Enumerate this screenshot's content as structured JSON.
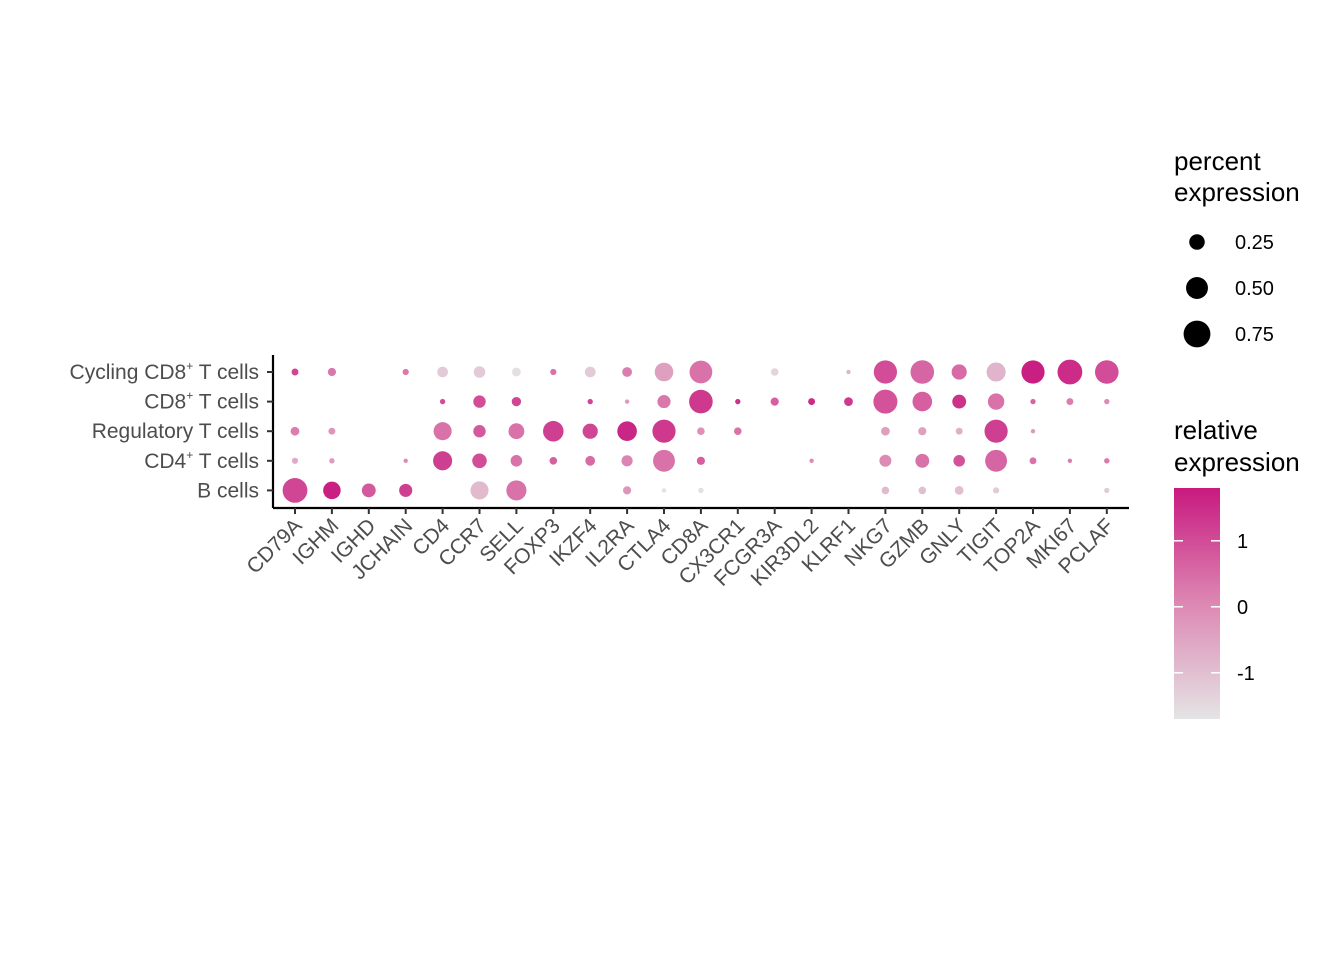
{
  "chart_data": {
    "type": "dot",
    "genes": [
      "CD79A",
      "IGHM",
      "IGHD",
      "JCHAIN",
      "CD4",
      "CCR7",
      "SELL",
      "FOXP3",
      "IKZF4",
      "IL2RA",
      "CTLA4",
      "CD8A",
      "CX3CR1",
      "FCGR3A",
      "KIR3DL2",
      "KLRF1",
      "NKG7",
      "GZMB",
      "GNLY",
      "TIGIT",
      "TOP2A",
      "MKI67",
      "PCLAF"
    ],
    "cell_types": [
      {
        "label": "Cycling CD8",
        "sup": "+",
        "suffix": " T cells"
      },
      {
        "label": "CD8",
        "sup": "+",
        "suffix": " T cells"
      },
      {
        "label": "Regulatory T cells",
        "sup": "",
        "suffix": ""
      },
      {
        "label": "CD4",
        "sup": "+",
        "suffix": " T cells"
      },
      {
        "label": "B cells",
        "sup": "",
        "suffix": ""
      }
    ],
    "percent_expression": [
      [
        0.05,
        0.07,
        null,
        0.04,
        0.12,
        0.14,
        0.08,
        0.04,
        0.12,
        0.1,
        0.36,
        0.54,
        null,
        0.06,
        null,
        0.02,
        0.56,
        0.58,
        0.24,
        0.38,
        0.56,
        0.64,
        0.58
      ],
      [
        null,
        null,
        null,
        null,
        0.03,
        0.16,
        0.09,
        null,
        0.03,
        0.02,
        0.18,
        0.58,
        0.03,
        0.07,
        0.05,
        0.08,
        0.6,
        0.4,
        0.2,
        0.28,
        0.03,
        0.05,
        0.03
      ],
      [
        0.08,
        0.05,
        null,
        null,
        0.34,
        0.16,
        0.26,
        0.44,
        0.24,
        0.4,
        0.56,
        0.06,
        0.06,
        null,
        null,
        null,
        0.08,
        0.07,
        0.05,
        0.56,
        0.02,
        null,
        null
      ],
      [
        0.04,
        0.03,
        null,
        0.02,
        0.38,
        0.22,
        0.14,
        0.06,
        0.1,
        0.13,
        0.5,
        0.07,
        null,
        null,
        0.02,
        null,
        0.15,
        0.2,
        0.14,
        0.5,
        0.05,
        0.02,
        0.03
      ],
      [
        0.64,
        0.32,
        0.2,
        0.18,
        null,
        0.34,
        0.42,
        null,
        null,
        0.07,
        0.02,
        0.03,
        null,
        null,
        null,
        null,
        0.06,
        0.06,
        0.08,
        0.04,
        null,
        null,
        0.03
      ]
    ],
    "relative_expression": [
      [
        1.1,
        0.3,
        null,
        0.3,
        -1.2,
        -1.2,
        -1.6,
        0.4,
        -1.2,
        0.2,
        -0.4,
        0.4,
        null,
        -1.4,
        null,
        -0.8,
        1.0,
        0.6,
        0.5,
        -0.8,
        1.7,
        1.5,
        1.0
      ],
      [
        null,
        null,
        null,
        null,
        1.0,
        1.0,
        1.1,
        null,
        1.1,
        -0.3,
        0.3,
        1.3,
        1.4,
        0.7,
        1.5,
        1.3,
        0.9,
        0.7,
        1.4,
        0.4,
        0.6,
        0.2,
        0.0
      ],
      [
        0.2,
        -0.2,
        null,
        null,
        0.4,
        0.8,
        0.4,
        1.2,
        1.1,
        1.6,
        1.3,
        -0.1,
        0.4,
        null,
        null,
        null,
        -0.4,
        -0.4,
        -0.7,
        1.2,
        -0.3,
        null,
        null
      ],
      [
        -0.6,
        -0.3,
        null,
        0.0,
        1.2,
        1.0,
        0.4,
        0.7,
        0.5,
        0.1,
        0.4,
        0.7,
        null,
        null,
        0.0,
        null,
        0.0,
        0.4,
        0.9,
        0.6,
        0.4,
        0.2,
        0.3
      ],
      [
        1.1,
        1.7,
        0.8,
        1.2,
        null,
        -0.9,
        0.4,
        null,
        null,
        -0.2,
        -1.6,
        -1.6,
        null,
        null,
        null,
        null,
        -0.9,
        -1.0,
        -1.0,
        -1.2,
        null,
        null,
        -1.2
      ]
    ],
    "size_legend": {
      "title_lines": [
        "percent",
        "expression"
      ],
      "entries": [
        {
          "value": 0.25,
          "label": "0.25"
        },
        {
          "value": 0.5,
          "label": "0.50"
        },
        {
          "value": 0.75,
          "label": "0.75"
        }
      ]
    },
    "color_legend": {
      "title_lines": [
        "relative",
        "expression"
      ],
      "min": -1.7,
      "max": 1.8,
      "low_color": "#e4e4e4",
      "mid_color": "#dd88b3",
      "high_color": "#c8197f",
      "ticks": [
        {
          "value": 1,
          "label": "1"
        },
        {
          "value": 0,
          "label": "0"
        },
        {
          "value": -1,
          "label": "-1"
        }
      ]
    },
    "legend_placement": "right",
    "grid": false
  }
}
